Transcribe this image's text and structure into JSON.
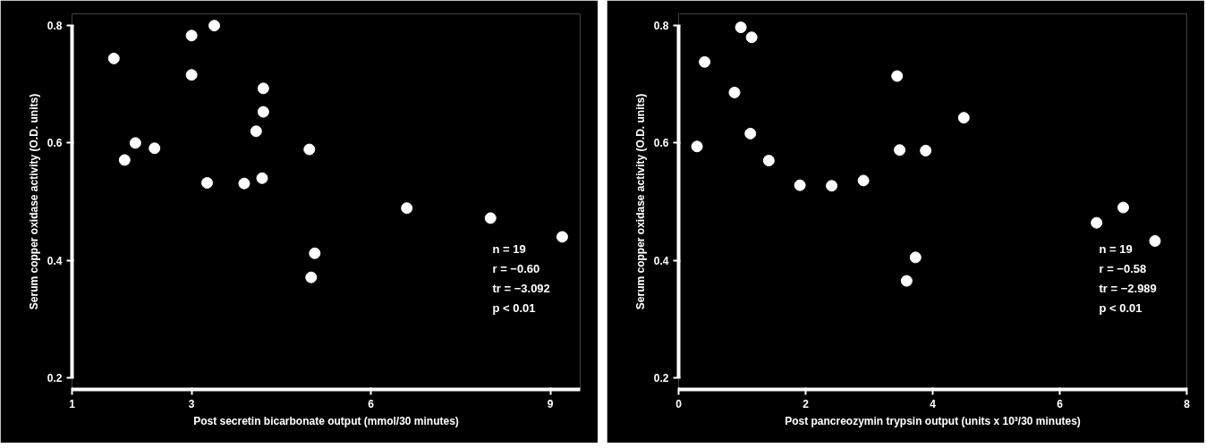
{
  "chart_data": [
    {
      "type": "scatter",
      "xlabel": "Post secretin bicarbonate output (mmol/30 minutes)",
      "ylabel": "Serum copper oxidase activity (O.D. units)",
      "x": [
        1.7,
        3.0,
        3.38,
        3.0,
        4.2,
        4.2,
        4.08,
        2.06,
        1.88,
        2.38,
        4.97,
        3.26,
        3.88,
        4.18,
        6.6,
        8.0,
        9.2,
        5.06,
        5.0
      ],
      "values": [
        0.744,
        0.783,
        0.8,
        0.716,
        0.693,
        0.653,
        0.62,
        0.6,
        0.571,
        0.591,
        0.589,
        0.532,
        0.531,
        0.54,
        0.489,
        0.472,
        0.44,
        0.412,
        0.371
      ],
      "color": "#ffffff",
      "marker": "circle",
      "xlim": [
        1,
        9.5
      ],
      "xticks": [
        1,
        3,
        6,
        9
      ],
      "ylim": [
        0.18,
        0.82
      ],
      "yticks": [
        0.2,
        0.4,
        0.6,
        0.8
      ],
      "annotations": [
        "n  = 19",
        "r   = −0.60",
        "tr  = −3.092",
        "p < 0.01"
      ]
    },
    {
      "type": "scatter",
      "xlabel": "Post pancreozymin trypsin output (units x 10³/30 minutes)",
      "ylabel": "Serum copper oxidase activity (O.D. units)",
      "x": [
        0.29,
        0.41,
        0.98,
        1.15,
        0.88,
        1.13,
        1.42,
        1.91,
        2.41,
        2.91,
        3.44,
        3.48,
        3.89,
        4.49,
        3.73,
        3.59,
        6.58,
        7.0,
        7.5
      ],
      "values": [
        0.594,
        0.738,
        0.797,
        0.78,
        0.686,
        0.616,
        0.57,
        0.528,
        0.527,
        0.536,
        0.714,
        0.588,
        0.587,
        0.643,
        0.405,
        0.365,
        0.464,
        0.49,
        0.433
      ],
      "color": "#ffffff",
      "marker": "circle",
      "xlim": [
        0,
        8
      ],
      "xticks": [
        0,
        2,
        4,
        6,
        8
      ],
      "ylim": [
        0.18,
        0.82
      ],
      "yticks": [
        0.2,
        0.4,
        0.6,
        0.8
      ],
      "annotations": [
        "n  = 19",
        "r   = −0.58",
        "tr  = −2.989",
        "p < 0.01"
      ]
    }
  ]
}
